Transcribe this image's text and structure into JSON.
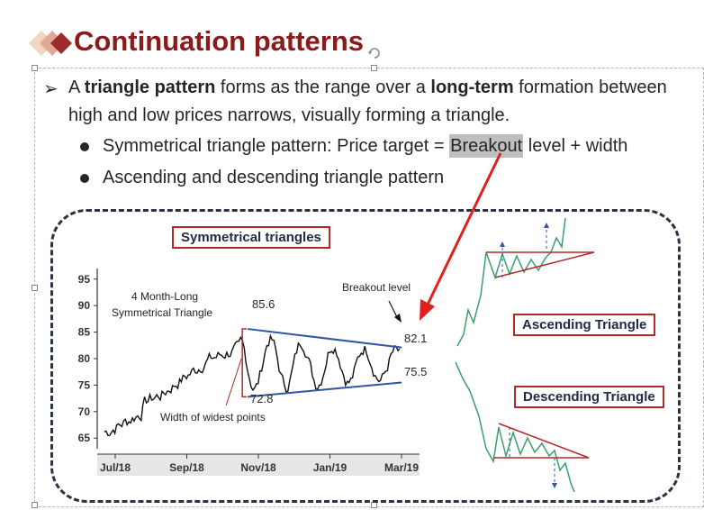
{
  "slide": {
    "title": "Continuation patterns",
    "bullet": {
      "pre": "A ",
      "bold1": "triangle pattern",
      "mid": " forms as the range over a ",
      "bold2": "long-term",
      "post": " formation between",
      "line2": "high and low prices narrows, visually forming a triangle."
    },
    "sub1": {
      "pre": "Symmetrical triangle pattern: Price target = ",
      "highlight": "Breakout",
      "post": " level + width"
    },
    "sub2": "Ascending and descending triangle pattern"
  },
  "labels": {
    "symmetrical": "Symmetrical triangles",
    "ascending": "Ascending Triangle",
    "descending": "Descending Triangle"
  },
  "chart_data": {
    "type": "line",
    "y_ticks": [
      "95",
      "90",
      "85",
      "80",
      "75",
      "70",
      "65"
    ],
    "x_ticks": [
      "Jul/18",
      "Sep/18",
      "Nov/18",
      "Jan/19",
      "Mar/19"
    ],
    "ylim": [
      63,
      97
    ],
    "annotations": {
      "title_line1": "4 Month-Long",
      "title_line2": "Symmetrical Triangle",
      "high": "85.6",
      "low": "72.8",
      "breakout_label": "Breakout level",
      "upper_end": "82.1",
      "lower_end": "75.5",
      "width_label": "Width of widest points"
    },
    "upper_line": {
      "from": [
        "Nov/18 start",
        85.6
      ],
      "to": [
        "Mar/19",
        82.1
      ]
    },
    "lower_line": {
      "from": [
        "Nov/18 start",
        72.8
      ],
      "to": [
        "Mar/19",
        75.5
      ]
    }
  },
  "colors": {
    "title": "#8b1a1a",
    "accent_red": "#e02020",
    "trend_line": "#2f55a4",
    "pattern_green": "#3aa06a",
    "pattern_red": "#b02a2a"
  }
}
